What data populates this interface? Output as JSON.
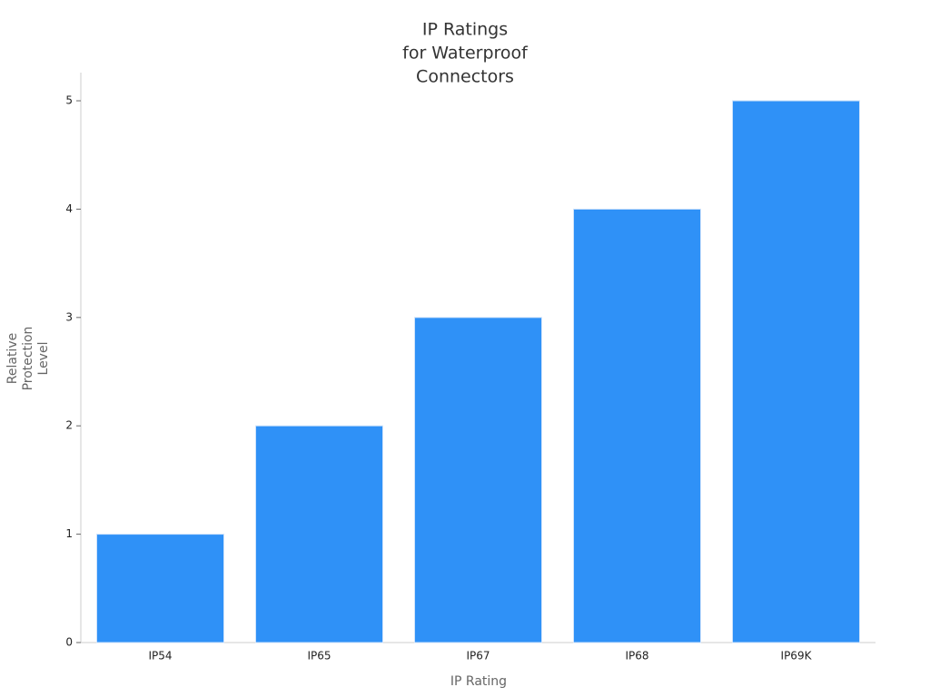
{
  "chart_data": {
    "type": "bar",
    "title": [
      "IP Ratings",
      "for Waterproof",
      "Connectors"
    ],
    "x_label": "IP Rating",
    "y_label": [
      "Relative",
      "Protection",
      "Level"
    ],
    "categories": [
      "IP54",
      "IP65",
      "IP67",
      "IP68",
      "IP69K"
    ],
    "values": [
      1,
      2,
      3,
      4,
      5
    ],
    "color": "#2f91f7",
    "ylim": [
      0,
      5.26
    ],
    "yticks": [
      0,
      1,
      2,
      3,
      4,
      5
    ],
    "grid": false
  }
}
